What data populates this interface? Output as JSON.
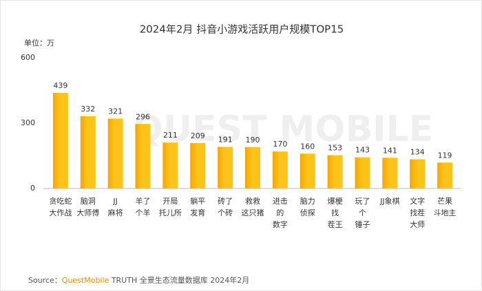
{
  "chart_data": {
    "type": "bar",
    "title": "2024年2月 抖音小游戏活跃用户规模TOP15",
    "unit": "单位：万",
    "categories": [
      "贪吃蛇\n大作战",
      "脑洞\n大师傅",
      "JJ\n麻将",
      "羊了\n个羊",
      "开局\n托儿所",
      "躺平\n发育",
      "砖了\n个砖",
      "救救\n这只猪",
      "进击\n的\n数字",
      "脑力\n侦探",
      "爆梗\n找\n茬王",
      "玩了\n个\n锤子",
      "JJ象棋",
      "文字\n找茬\n大师",
      "芒果\n斗地主"
    ],
    "values": [
      439,
      332,
      321,
      296,
      211,
      209,
      191,
      190,
      170,
      160,
      153,
      143,
      141,
      134,
      119
    ],
    "color": "#fcc419",
    "edge_color": "#f7a600",
    "ylim": [
      0,
      600
    ],
    "yticks": [
      0,
      300,
      600
    ],
    "grid": false,
    "watermark": "QUEST MOBILE",
    "source_label": "Source：",
    "source_brand": "QuestMobile",
    "source_text": "TRUTH 全景生态流量数据库 2024年2月"
  }
}
